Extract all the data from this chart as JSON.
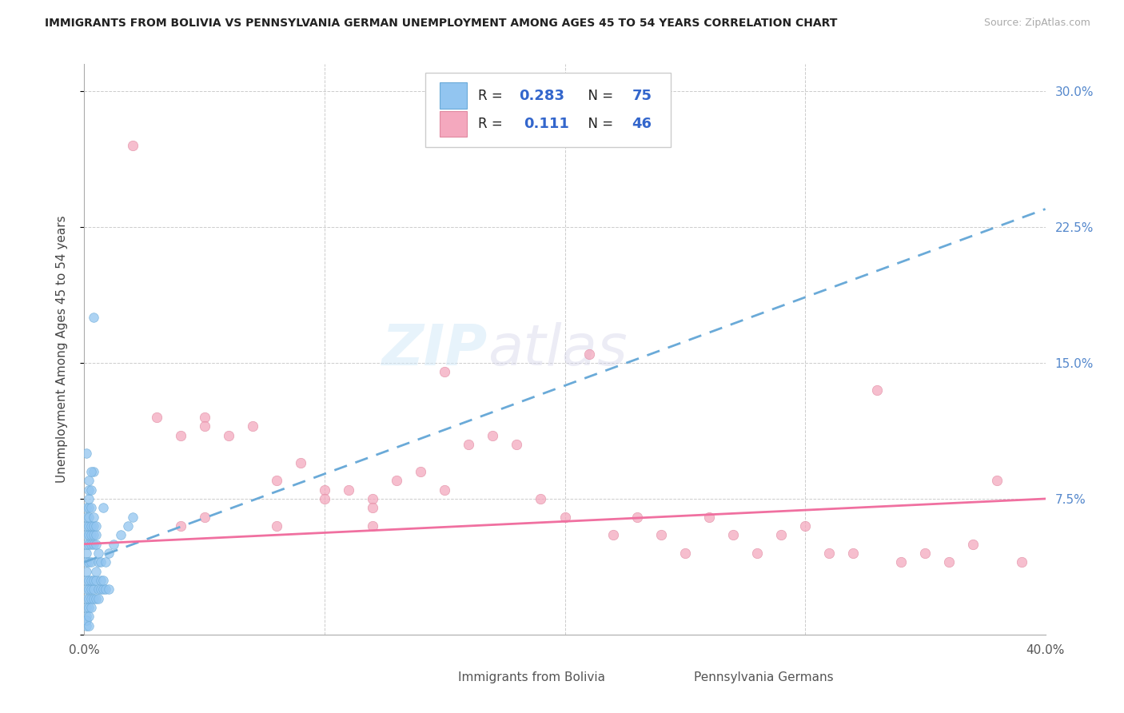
{
  "title": "IMMIGRANTS FROM BOLIVIA VS PENNSYLVANIA GERMAN UNEMPLOYMENT AMONG AGES 45 TO 54 YEARS CORRELATION CHART",
  "source": "Source: ZipAtlas.com",
  "ylabel": "Unemployment Among Ages 45 to 54 years",
  "yticks": [
    0.0,
    0.075,
    0.15,
    0.225,
    0.3
  ],
  "ytick_labels": [
    "",
    "7.5%",
    "15.0%",
    "22.5%",
    "30.0%"
  ],
  "xlim": [
    0.0,
    0.4
  ],
  "ylim": [
    0.0,
    0.315
  ],
  "bolivia_color": "#92C5F0",
  "bolivia_edge": "#6aaad8",
  "pennsylvania_color": "#F4A8BE",
  "pennsylvania_edge": "#e088a0",
  "bolivia_line_color": "#6aaad8",
  "pennsylvania_line_color": "#F070A0",
  "bolivia_R": 0.283,
  "bolivia_N": 75,
  "pennsylvania_R": 0.111,
  "pennsylvania_N": 46,
  "background_color": "#ffffff",
  "grid_color": "#cccccc",
  "bolivia_trendline": [
    0.0,
    0.04,
    0.4,
    0.235
  ],
  "pennsylvania_trendline": [
    0.0,
    0.05,
    0.4,
    0.075
  ],
  "bolivia_scatter": [
    [
      0.001,
      0.025
    ],
    [
      0.001,
      0.03
    ],
    [
      0.001,
      0.02
    ],
    [
      0.001,
      0.015
    ],
    [
      0.001,
      0.035
    ],
    [
      0.001,
      0.045
    ],
    [
      0.001,
      0.05
    ],
    [
      0.001,
      0.055
    ],
    [
      0.001,
      0.06
    ],
    [
      0.001,
      0.065
    ],
    [
      0.001,
      0.07
    ],
    [
      0.001,
      0.04
    ],
    [
      0.001,
      0.01
    ],
    [
      0.001,
      0.005
    ],
    [
      0.001,
      0.008
    ],
    [
      0.002,
      0.02
    ],
    [
      0.002,
      0.03
    ],
    [
      0.002,
      0.025
    ],
    [
      0.002,
      0.015
    ],
    [
      0.002,
      0.04
    ],
    [
      0.002,
      0.05
    ],
    [
      0.002,
      0.055
    ],
    [
      0.002,
      0.06
    ],
    [
      0.002,
      0.065
    ],
    [
      0.002,
      0.07
    ],
    [
      0.002,
      0.075
    ],
    [
      0.002,
      0.08
    ],
    [
      0.002,
      0.01
    ],
    [
      0.002,
      0.005
    ],
    [
      0.003,
      0.02
    ],
    [
      0.003,
      0.025
    ],
    [
      0.003,
      0.03
    ],
    [
      0.003,
      0.015
    ],
    [
      0.003,
      0.04
    ],
    [
      0.003,
      0.05
    ],
    [
      0.003,
      0.055
    ],
    [
      0.003,
      0.06
    ],
    [
      0.003,
      0.07
    ],
    [
      0.003,
      0.08
    ],
    [
      0.004,
      0.02
    ],
    [
      0.004,
      0.025
    ],
    [
      0.004,
      0.03
    ],
    [
      0.004,
      0.05
    ],
    [
      0.004,
      0.055
    ],
    [
      0.004,
      0.06
    ],
    [
      0.004,
      0.065
    ],
    [
      0.005,
      0.02
    ],
    [
      0.005,
      0.03
    ],
    [
      0.005,
      0.035
    ],
    [
      0.005,
      0.05
    ],
    [
      0.005,
      0.055
    ],
    [
      0.005,
      0.06
    ],
    [
      0.006,
      0.02
    ],
    [
      0.006,
      0.025
    ],
    [
      0.006,
      0.04
    ],
    [
      0.006,
      0.045
    ],
    [
      0.007,
      0.025
    ],
    [
      0.007,
      0.03
    ],
    [
      0.007,
      0.04
    ],
    [
      0.008,
      0.025
    ],
    [
      0.008,
      0.03
    ],
    [
      0.009,
      0.025
    ],
    [
      0.009,
      0.04
    ],
    [
      0.01,
      0.025
    ],
    [
      0.01,
      0.045
    ],
    [
      0.012,
      0.05
    ],
    [
      0.015,
      0.055
    ],
    [
      0.018,
      0.06
    ],
    [
      0.02,
      0.065
    ],
    [
      0.004,
      0.175
    ],
    [
      0.004,
      0.09
    ],
    [
      0.003,
      0.09
    ],
    [
      0.002,
      0.085
    ],
    [
      0.001,
      0.1
    ],
    [
      0.008,
      0.07
    ]
  ],
  "pennsylvania_scatter": [
    [
      0.02,
      0.27
    ],
    [
      0.03,
      0.12
    ],
    [
      0.04,
      0.11
    ],
    [
      0.05,
      0.12
    ],
    [
      0.05,
      0.115
    ],
    [
      0.06,
      0.11
    ],
    [
      0.07,
      0.115
    ],
    [
      0.08,
      0.085
    ],
    [
      0.09,
      0.095
    ],
    [
      0.1,
      0.08
    ],
    [
      0.1,
      0.075
    ],
    [
      0.11,
      0.08
    ],
    [
      0.12,
      0.075
    ],
    [
      0.12,
      0.06
    ],
    [
      0.13,
      0.085
    ],
    [
      0.14,
      0.09
    ],
    [
      0.15,
      0.08
    ],
    [
      0.15,
      0.145
    ],
    [
      0.16,
      0.105
    ],
    [
      0.17,
      0.11
    ],
    [
      0.18,
      0.105
    ],
    [
      0.19,
      0.075
    ],
    [
      0.2,
      0.065
    ],
    [
      0.21,
      0.155
    ],
    [
      0.22,
      0.055
    ],
    [
      0.23,
      0.065
    ],
    [
      0.24,
      0.055
    ],
    [
      0.25,
      0.045
    ],
    [
      0.26,
      0.065
    ],
    [
      0.27,
      0.055
    ],
    [
      0.28,
      0.045
    ],
    [
      0.29,
      0.055
    ],
    [
      0.3,
      0.06
    ],
    [
      0.31,
      0.045
    ],
    [
      0.32,
      0.045
    ],
    [
      0.33,
      0.135
    ],
    [
      0.34,
      0.04
    ],
    [
      0.35,
      0.045
    ],
    [
      0.36,
      0.04
    ],
    [
      0.37,
      0.05
    ],
    [
      0.38,
      0.085
    ],
    [
      0.39,
      0.04
    ],
    [
      0.04,
      0.06
    ],
    [
      0.05,
      0.065
    ],
    [
      0.08,
      0.06
    ],
    [
      0.12,
      0.07
    ]
  ]
}
